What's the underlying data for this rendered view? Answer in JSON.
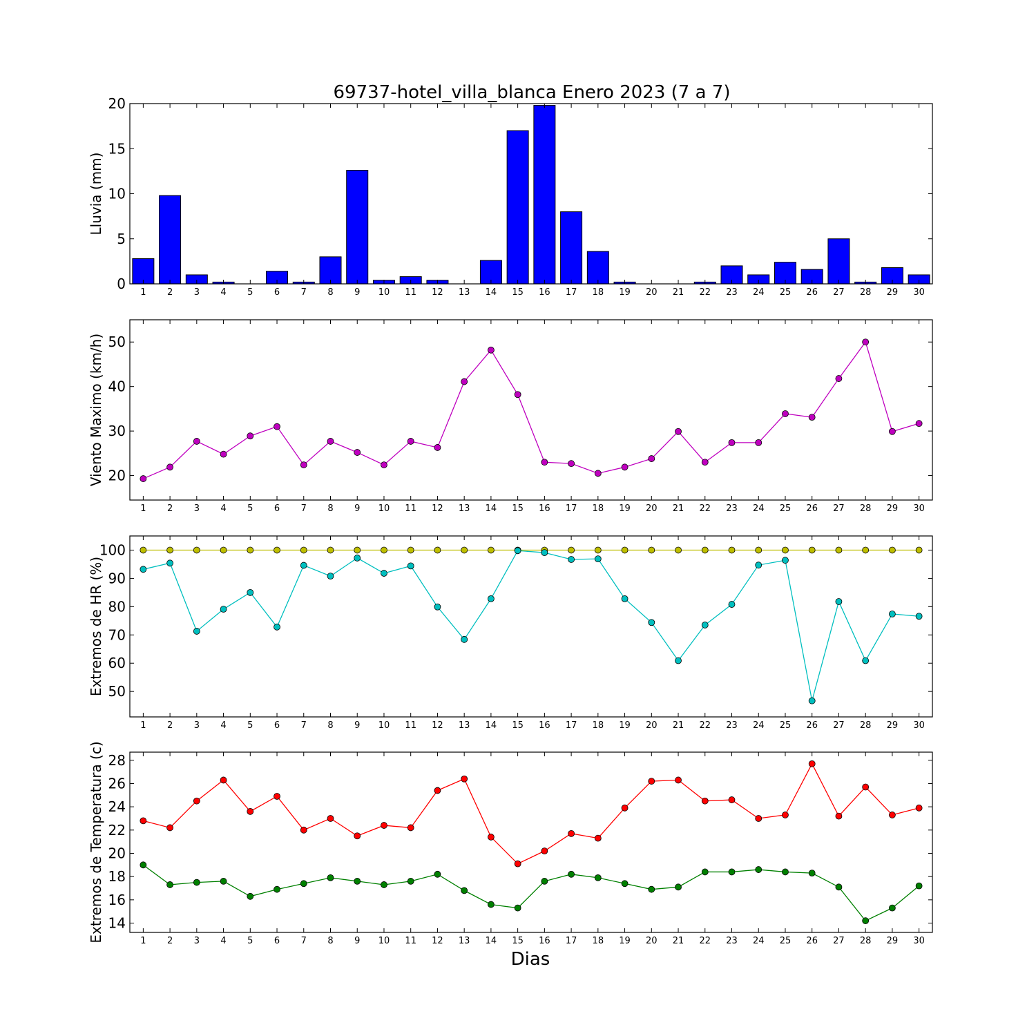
{
  "title": "69737-hotel_villa_blanca Enero 2023  (7 a 7)",
  "xlabel": "Dias",
  "chart_data": [
    {
      "type": "bar",
      "ylabel": "Lluvia (mm)",
      "ylim": [
        0,
        20
      ],
      "yticks": [
        0,
        5,
        10,
        15,
        20
      ],
      "x": [
        1,
        2,
        3,
        4,
        5,
        6,
        7,
        8,
        9,
        10,
        11,
        12,
        13,
        14,
        15,
        16,
        17,
        18,
        19,
        20,
        21,
        22,
        23,
        24,
        25,
        26,
        27,
        28,
        29,
        30
      ],
      "series": [
        {
          "color": "#0000ff",
          "values": [
            2.8,
            9.8,
            1.0,
            0.2,
            0,
            1.4,
            0.2,
            3.0,
            12.6,
            0.4,
            0.8,
            0.4,
            0,
            2.6,
            17.0,
            19.8,
            8.0,
            3.6,
            0.2,
            0,
            0,
            0.2,
            2.0,
            1.0,
            2.4,
            1.6,
            5.0,
            0.2,
            1.8,
            1.0
          ]
        }
      ]
    },
    {
      "type": "line",
      "ylabel": "Viento Maximo (km/h)",
      "ylim": [
        14.5,
        55
      ],
      "yticks": [
        20,
        30,
        40,
        50
      ],
      "x": [
        1,
        2,
        3,
        4,
        5,
        6,
        7,
        8,
        9,
        10,
        11,
        12,
        13,
        14,
        15,
        16,
        17,
        18,
        19,
        20,
        21,
        22,
        23,
        24,
        25,
        26,
        27,
        28,
        29,
        30
      ],
      "series": [
        {
          "color": "#bf00bf",
          "values": [
            19.3,
            21.9,
            27.7,
            24.8,
            28.9,
            31.0,
            22.4,
            27.7,
            25.2,
            22.4,
            27.7,
            26.3,
            41.1,
            48.2,
            38.2,
            23.0,
            22.7,
            20.5,
            21.9,
            23.8,
            29.9,
            23.0,
            27.4,
            27.4,
            33.9,
            33.1,
            41.8,
            50.0,
            29.9,
            31.7
          ]
        }
      ]
    },
    {
      "type": "line",
      "ylabel": "Extremos de HR (%)",
      "ylim": [
        41,
        105
      ],
      "yticks": [
        50,
        60,
        70,
        80,
        90,
        100
      ],
      "x": [
        1,
        2,
        3,
        4,
        5,
        6,
        7,
        8,
        9,
        10,
        11,
        12,
        13,
        14,
        15,
        16,
        17,
        18,
        19,
        20,
        21,
        22,
        23,
        24,
        25,
        26,
        27,
        28,
        29,
        30
      ],
      "series": [
        {
          "color": "#bfbf00",
          "values": [
            100,
            100,
            100,
            100,
            100,
            100,
            100,
            100,
            100,
            100,
            100,
            100,
            100,
            100,
            100,
            100,
            100,
            100,
            100,
            100,
            100,
            100,
            100,
            100,
            100,
            100,
            100,
            100,
            100,
            100
          ]
        },
        {
          "color": "#00bfbf",
          "values": [
            93.2,
            95.4,
            71.3,
            79.1,
            85.0,
            72.8,
            94.6,
            90.8,
            97.2,
            91.8,
            94.4,
            79.9,
            68.4,
            82.8,
            99.8,
            99.1,
            96.7,
            96.9,
            82.8,
            74.4,
            60.9,
            73.5,
            80.8,
            94.7,
            96.4,
            46.7,
            81.8,
            60.9,
            77.4,
            76.6
          ]
        }
      ]
    },
    {
      "type": "line",
      "ylabel": "Extremos de Temperatura (c)",
      "ylim": [
        13.2,
        28.7
      ],
      "yticks": [
        14,
        16,
        18,
        20,
        22,
        24,
        26,
        28
      ],
      "x": [
        1,
        2,
        3,
        4,
        5,
        6,
        7,
        8,
        9,
        10,
        11,
        12,
        13,
        14,
        15,
        16,
        17,
        18,
        19,
        20,
        21,
        22,
        23,
        24,
        25,
        26,
        27,
        28,
        29,
        30
      ],
      "series": [
        {
          "color": "#ff0000",
          "values": [
            22.8,
            22.2,
            24.5,
            26.3,
            23.6,
            24.9,
            22.0,
            23.0,
            21.5,
            22.4,
            22.2,
            25.4,
            26.4,
            21.4,
            19.1,
            20.2,
            21.7,
            21.3,
            23.9,
            26.2,
            26.3,
            24.5,
            24.6,
            23.0,
            23.3,
            27.7,
            23.2,
            25.7,
            23.3,
            23.9
          ]
        },
        {
          "color": "#008000",
          "values": [
            19.0,
            17.3,
            17.5,
            17.6,
            16.3,
            16.9,
            17.4,
            17.9,
            17.6,
            17.3,
            17.6,
            18.2,
            16.8,
            15.6,
            15.3,
            17.6,
            18.2,
            17.9,
            17.4,
            16.9,
            17.1,
            18.4,
            18.4,
            18.6,
            18.4,
            18.3,
            17.1,
            14.2,
            15.3,
            17.2
          ]
        }
      ]
    }
  ]
}
